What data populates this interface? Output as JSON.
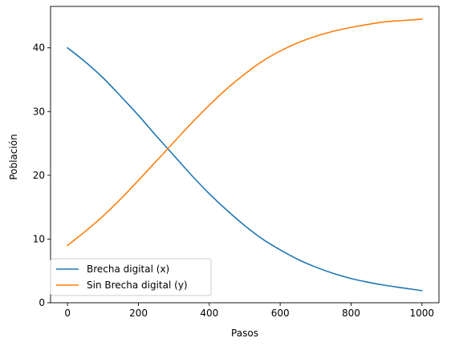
{
  "chart_data": {
    "type": "line",
    "title": "",
    "xlabel": "Pasos",
    "ylabel": "Población",
    "xlim": [
      -48,
      1048
    ],
    "ylim": [
      0,
      46.5
    ],
    "xticks": [
      0,
      200,
      400,
      600,
      800,
      1000
    ],
    "yticks": [
      0,
      10,
      20,
      30,
      40
    ],
    "grid": false,
    "legend": "lower-left",
    "x": [
      0,
      50,
      100,
      150,
      200,
      250,
      300,
      350,
      400,
      450,
      500,
      550,
      600,
      650,
      700,
      750,
      800,
      850,
      900,
      950,
      1000
    ],
    "series": [
      {
        "name": "Brecha digital (x)",
        "color": "#1f77b4",
        "values": [
          40.0,
          37.8,
          35.3,
          32.4,
          29.4,
          26.2,
          23.1,
          20.0,
          17.1,
          14.5,
          12.1,
          10.0,
          8.3,
          6.8,
          5.6,
          4.6,
          3.8,
          3.2,
          2.7,
          2.3,
          1.9
        ]
      },
      {
        "name": "Sin Brecha digital (y)",
        "color": "#ff7f0e",
        "values": [
          9.0,
          11.2,
          13.6,
          16.3,
          19.2,
          22.2,
          25.2,
          28.2,
          31.0,
          33.6,
          35.9,
          37.9,
          39.5,
          40.8,
          41.8,
          42.6,
          43.2,
          43.7,
          44.1,
          44.3,
          44.5
        ]
      }
    ]
  }
}
